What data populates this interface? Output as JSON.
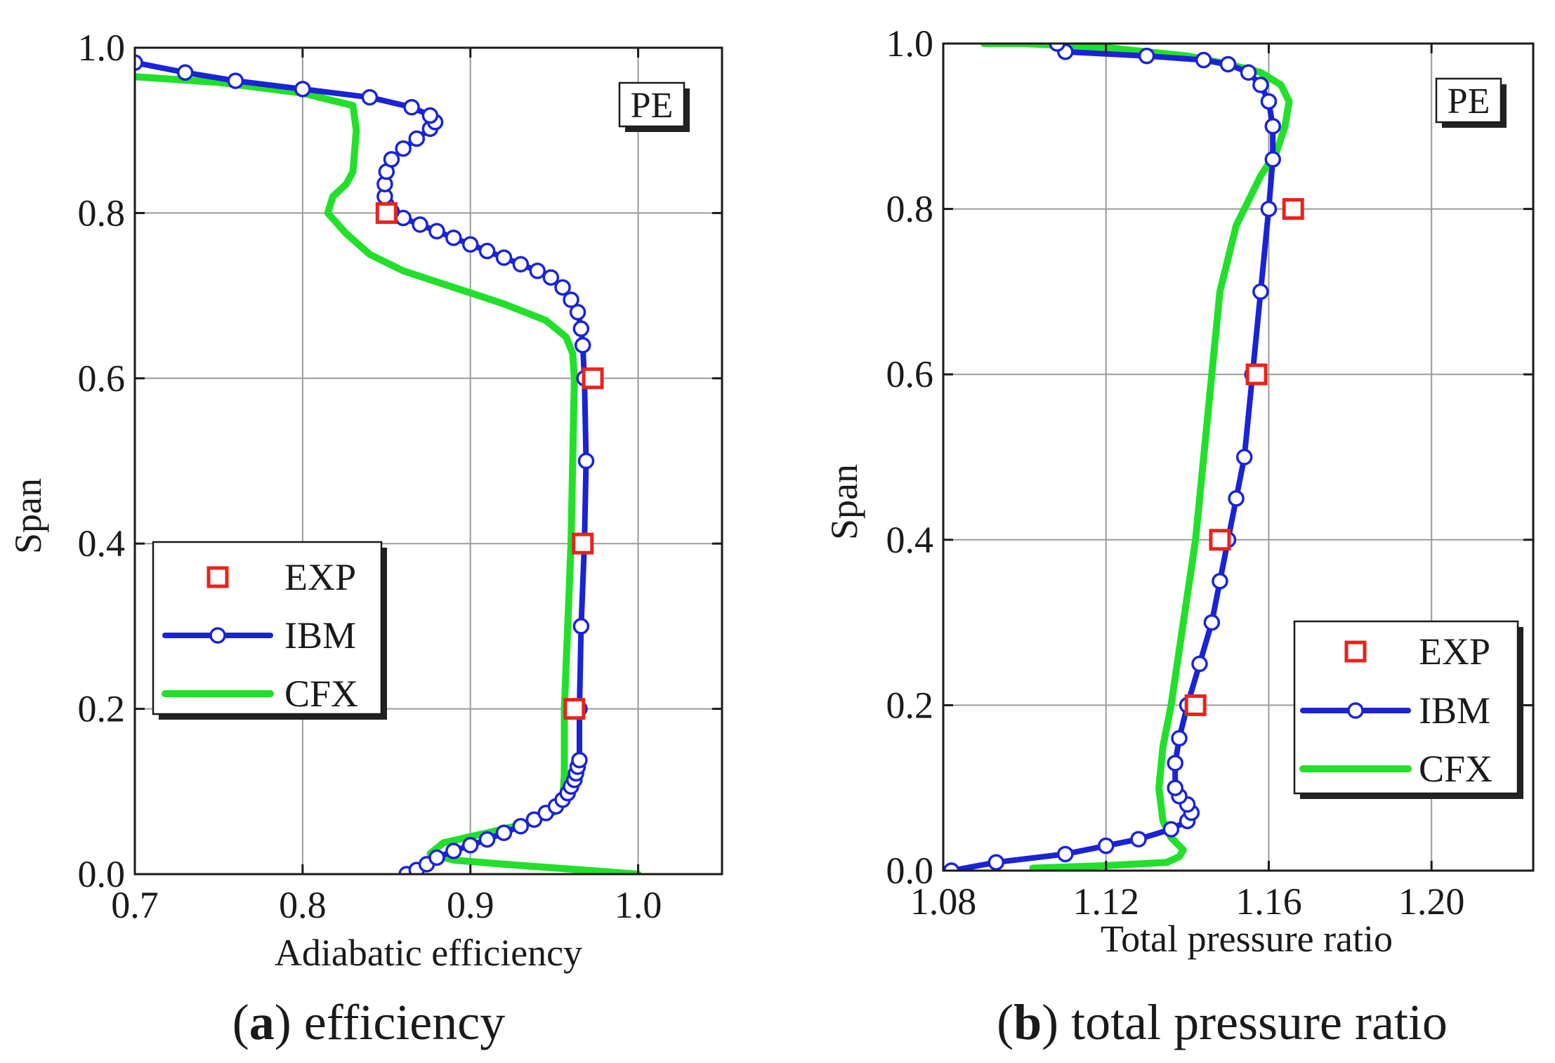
{
  "chart_data": [
    {
      "type": "line",
      "panel": "a",
      "caption_letter": "a",
      "caption_text": "efficiency",
      "caption_open": "(",
      "caption_close": ")",
      "xlabel": "Adiabatic efficiency",
      "ylabel": "Span",
      "annotation": "PE",
      "xlim": [
        0.7,
        1.05
      ],
      "ylim": [
        0.0,
        1.0
      ],
      "x_ticks": [
        0.7,
        0.8,
        0.9,
        1.0
      ],
      "x_tick_labels": [
        "0.7",
        "0.8",
        "0.9",
        "1.0"
      ],
      "y_ticks": [
        0.0,
        0.2,
        0.4,
        0.6,
        0.8,
        1.0
      ],
      "y_tick_labels": [
        "0.0",
        "0.2",
        "0.4",
        "0.6",
        "0.8",
        "1.0"
      ],
      "grid": true,
      "legend_position": "middle-left",
      "series": [
        {
          "name": "EXP",
          "kind": "marker",
          "color": "#e8231c",
          "points": [
            [
              0.85,
              0.8
            ],
            [
              0.973,
              0.6
            ],
            [
              0.967,
              0.4
            ],
            [
              0.962,
              0.2
            ]
          ]
        },
        {
          "name": "IBM",
          "kind": "line-marker",
          "color": "#1a23d6",
          "points": [
            [
              0.862,
              0.0
            ],
            [
              0.868,
              0.005
            ],
            [
              0.874,
              0.012
            ],
            [
              0.88,
              0.02
            ],
            [
              0.89,
              0.028
            ],
            [
              0.9,
              0.035
            ],
            [
              0.91,
              0.042
            ],
            [
              0.92,
              0.05
            ],
            [
              0.93,
              0.058
            ],
            [
              0.938,
              0.066
            ],
            [
              0.945,
              0.074
            ],
            [
              0.951,
              0.082
            ],
            [
              0.955,
              0.09
            ],
            [
              0.958,
              0.098
            ],
            [
              0.96,
              0.106
            ],
            [
              0.962,
              0.114
            ],
            [
              0.963,
              0.122
            ],
            [
              0.964,
              0.13
            ],
            [
              0.965,
              0.138
            ],
            [
              0.965,
              0.2
            ],
            [
              0.966,
              0.3
            ],
            [
              0.968,
              0.4
            ],
            [
              0.969,
              0.5
            ],
            [
              0.968,
              0.6
            ],
            [
              0.967,
              0.64
            ],
            [
              0.966,
              0.66
            ],
            [
              0.964,
              0.68
            ],
            [
              0.96,
              0.695
            ],
            [
              0.955,
              0.71
            ],
            [
              0.948,
              0.722
            ],
            [
              0.94,
              0.73
            ],
            [
              0.93,
              0.738
            ],
            [
              0.92,
              0.746
            ],
            [
              0.91,
              0.754
            ],
            [
              0.9,
              0.762
            ],
            [
              0.89,
              0.77
            ],
            [
              0.88,
              0.778
            ],
            [
              0.87,
              0.786
            ],
            [
              0.86,
              0.794
            ],
            [
              0.853,
              0.802
            ],
            [
              0.85,
              0.81
            ],
            [
              0.849,
              0.82
            ],
            [
              0.849,
              0.835
            ],
            [
              0.85,
              0.85
            ],
            [
              0.853,
              0.865
            ],
            [
              0.86,
              0.878
            ],
            [
              0.868,
              0.89
            ],
            [
              0.876,
              0.902
            ],
            [
              0.879,
              0.91
            ],
            [
              0.876,
              0.918
            ],
            [
              0.865,
              0.928
            ],
            [
              0.84,
              0.94
            ],
            [
              0.8,
              0.95
            ],
            [
              0.76,
              0.96
            ],
            [
              0.73,
              0.97
            ],
            [
              0.7,
              0.982
            ]
          ]
        },
        {
          "name": "CFX",
          "kind": "line",
          "color": "#22e02a",
          "points": [
            [
              1.0,
              0.0
            ],
            [
              0.96,
              0.006
            ],
            [
              0.92,
              0.012
            ],
            [
              0.89,
              0.017
            ],
            [
              0.876,
              0.025
            ],
            [
              0.884,
              0.038
            ],
            [
              0.91,
              0.05
            ],
            [
              0.935,
              0.062
            ],
            [
              0.95,
              0.075
            ],
            [
              0.955,
              0.09
            ],
            [
              0.956,
              0.12
            ],
            [
              0.956,
              0.2
            ],
            [
              0.958,
              0.3
            ],
            [
              0.96,
              0.4
            ],
            [
              0.961,
              0.5
            ],
            [
              0.962,
              0.6
            ],
            [
              0.961,
              0.63
            ],
            [
              0.957,
              0.65
            ],
            [
              0.945,
              0.67
            ],
            [
              0.92,
              0.69
            ],
            [
              0.89,
              0.71
            ],
            [
              0.86,
              0.73
            ],
            [
              0.84,
              0.75
            ],
            [
              0.826,
              0.775
            ],
            [
              0.815,
              0.8
            ],
            [
              0.818,
              0.82
            ],
            [
              0.826,
              0.835
            ],
            [
              0.83,
              0.85
            ],
            [
              0.832,
              0.9
            ],
            [
              0.83,
              0.93
            ],
            [
              0.8,
              0.945
            ],
            [
              0.75,
              0.958
            ],
            [
              0.7,
              0.965
            ]
          ]
        }
      ]
    },
    {
      "type": "line",
      "panel": "b",
      "caption_letter": "b",
      "caption_text": "total pressure ratio",
      "caption_open": "(",
      "caption_close": ")",
      "xlabel": "Total pressure ratio",
      "ylabel": "Span",
      "annotation": "PE",
      "xlim": [
        1.08,
        1.225
      ],
      "ylim": [
        0.0,
        1.0
      ],
      "x_ticks": [
        1.08,
        1.12,
        1.16,
        1.2
      ],
      "x_tick_labels": [
        "1.08",
        "1.12",
        "1.16",
        "1.20"
      ],
      "y_ticks": [
        0.0,
        0.2,
        0.4,
        0.6,
        0.8,
        1.0
      ],
      "y_tick_labels": [
        "0.0",
        "0.2",
        "0.4",
        "0.6",
        "0.8",
        "1.0"
      ],
      "grid": true,
      "legend_position": "bottom-right",
      "series": [
        {
          "name": "EXP",
          "kind": "marker",
          "color": "#e8231c",
          "points": [
            [
              1.166,
              0.8
            ],
            [
              1.157,
              0.6
            ],
            [
              1.148,
              0.4
            ],
            [
              1.142,
              0.2
            ]
          ]
        },
        {
          "name": "IBM",
          "kind": "line-marker",
          "color": "#1a23d6",
          "points": [
            [
              1.082,
              0.0
            ],
            [
              1.093,
              0.01
            ],
            [
              1.11,
              0.02
            ],
            [
              1.12,
              0.03
            ],
            [
              1.128,
              0.038
            ],
            [
              1.136,
              0.05
            ],
            [
              1.14,
              0.06
            ],
            [
              1.141,
              0.07
            ],
            [
              1.14,
              0.08
            ],
            [
              1.138,
              0.09
            ],
            [
              1.137,
              0.1
            ],
            [
              1.137,
              0.13
            ],
            [
              1.138,
              0.16
            ],
            [
              1.14,
              0.2
            ],
            [
              1.143,
              0.25
            ],
            [
              1.146,
              0.3
            ],
            [
              1.148,
              0.35
            ],
            [
              1.15,
              0.4
            ],
            [
              1.152,
              0.45
            ],
            [
              1.154,
              0.5
            ],
            [
              1.156,
              0.6
            ],
            [
              1.158,
              0.7
            ],
            [
              1.16,
              0.8
            ],
            [
              1.161,
              0.86
            ],
            [
              1.161,
              0.9
            ],
            [
              1.16,
              0.93
            ],
            [
              1.158,
              0.95
            ],
            [
              1.155,
              0.965
            ],
            [
              1.15,
              0.975
            ],
            [
              1.144,
              0.98
            ],
            [
              1.13,
              0.985
            ],
            [
              1.11,
              0.99
            ],
            [
              1.108,
              1.0
            ]
          ]
        },
        {
          "name": "CFX",
          "kind": "line",
          "color": "#22e02a",
          "points": [
            [
              1.102,
              0.003
            ],
            [
              1.12,
              0.006
            ],
            [
              1.135,
              0.01
            ],
            [
              1.138,
              0.017
            ],
            [
              1.139,
              0.025
            ],
            [
              1.136,
              0.04
            ],
            [
              1.134,
              0.06
            ],
            [
              1.133,
              0.1
            ],
            [
              1.134,
              0.15
            ],
            [
              1.136,
              0.2
            ],
            [
              1.139,
              0.3
            ],
            [
              1.142,
              0.4
            ],
            [
              1.144,
              0.5
            ],
            [
              1.146,
              0.6
            ],
            [
              1.148,
              0.7
            ],
            [
              1.152,
              0.78
            ],
            [
              1.158,
              0.84
            ],
            [
              1.162,
              0.87
            ],
            [
              1.164,
              0.9
            ],
            [
              1.165,
              0.93
            ],
            [
              1.163,
              0.95
            ],
            [
              1.158,
              0.965
            ],
            [
              1.15,
              0.975
            ],
            [
              1.14,
              0.985
            ],
            [
              1.12,
              0.995
            ],
            [
              1.1,
              1.0
            ],
            [
              1.09,
              1.0
            ]
          ]
        }
      ]
    }
  ]
}
